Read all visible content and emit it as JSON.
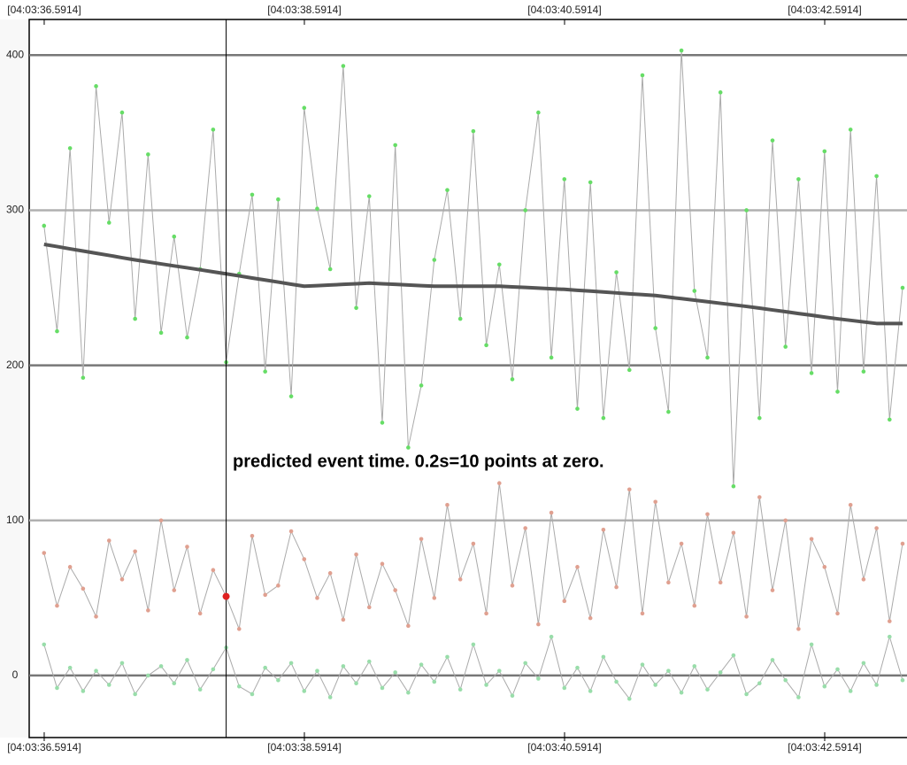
{
  "chart_data": {
    "type": "line",
    "xlim": [
      36.476,
      43.224
    ],
    "ylim": [
      -40,
      423
    ],
    "xticks": [
      {
        "value": 36.5914,
        "label": "[04:03:36.5914]"
      },
      {
        "value": 38.5914,
        "label": "[04:03:38.5914]"
      },
      {
        "value": 40.5914,
        "label": "[04:03:40.5914]"
      },
      {
        "value": 42.5914,
        "label": "[04:03:42.5914]"
      }
    ],
    "yticks": [
      0,
      100,
      200,
      300,
      400
    ],
    "grid": true,
    "annotation": "predicted event time. 0.2s=10 points at zero.",
    "cursor": {
      "x": 37.99,
      "value": 51,
      "color": "#e02020"
    },
    "x": [
      36.59,
      36.69,
      36.79,
      36.89,
      36.99,
      37.09,
      37.19,
      37.29,
      37.39,
      37.49,
      37.59,
      37.69,
      37.79,
      37.89,
      37.99,
      38.09,
      38.19,
      38.29,
      38.39,
      38.49,
      38.59,
      38.69,
      38.79,
      38.89,
      38.99,
      39.09,
      39.19,
      39.29,
      39.39,
      39.49,
      39.59,
      39.69,
      39.79,
      39.89,
      39.99,
      40.09,
      40.19,
      40.29,
      40.39,
      40.49,
      40.59,
      40.69,
      40.79,
      40.89,
      40.99,
      41.09,
      41.19,
      41.29,
      41.39,
      41.49,
      41.59,
      41.69,
      41.79,
      41.89,
      41.99,
      42.09,
      42.19,
      42.29,
      42.39,
      42.49,
      42.59,
      42.69,
      42.79,
      42.89,
      42.99,
      43.09,
      43.19
    ],
    "series": [
      {
        "color": "#66dd66",
        "markers": true,
        "values": [
          290,
          222,
          340,
          192,
          380,
          292,
          363,
          230,
          336,
          221,
          283,
          218,
          262,
          352,
          202,
          259,
          310,
          196,
          307,
          180,
          366,
          301,
          262,
          393,
          237,
          309,
          163,
          342,
          147,
          187,
          268,
          313,
          230,
          351,
          213,
          265,
          191,
          300,
          363,
          205,
          320,
          172,
          318,
          166,
          260,
          197,
          387,
          224,
          170,
          403,
          248,
          205,
          376,
          122,
          300,
          166,
          345,
          212,
          320,
          195,
          338,
          183,
          352,
          196,
          322,
          165,
          250
        ]
      },
      {
        "color": "#e0a090",
        "markers": true,
        "values": [
          79,
          45,
          70,
          56,
          38,
          87,
          62,
          80,
          42,
          100,
          55,
          83,
          40,
          68,
          51,
          30,
          90,
          52,
          58,
          93,
          75,
          50,
          66,
          36,
          78,
          44,
          72,
          55,
          32,
          88,
          50,
          110,
          62,
          85,
          40,
          124,
          58,
          95,
          33,
          105,
          48,
          70,
          37,
          94,
          57,
          120,
          40,
          112,
          60,
          85,
          45,
          104,
          60,
          92,
          38,
          115,
          55,
          100,
          30,
          88,
          70,
          40,
          110,
          62,
          95,
          35,
          85
        ]
      },
      {
        "color": "#99ddaa",
        "markers": true,
        "values": [
          20,
          -8,
          5,
          -10,
          3,
          -6,
          8,
          -12,
          0,
          6,
          -5,
          10,
          -9,
          4,
          18,
          -7,
          -12,
          5,
          -3,
          8,
          -10,
          3,
          -14,
          6,
          -5,
          9,
          -8,
          2,
          -11,
          7,
          -4,
          12,
          -9,
          20,
          -6,
          3,
          -13,
          8,
          -2,
          25,
          -8,
          5,
          -10,
          12,
          -4,
          -15,
          7,
          -6,
          3,
          -11,
          6,
          -9,
          2,
          13,
          -12,
          -5,
          10,
          -3,
          -14,
          20,
          -7,
          4,
          -10,
          8,
          -6,
          25,
          -3
        ]
      },
      {
        "color": "#555555",
        "markers": false,
        "values": [
          278,
          276.6,
          275.1,
          273.7,
          272.3,
          270.9,
          269.4,
          268,
          266.7,
          265.4,
          264.1,
          262.9,
          261.6,
          260.3,
          259,
          257.7,
          256.3,
          255,
          253.7,
          252.3,
          251,
          251.4,
          251.8,
          252.2,
          252.6,
          253,
          252.6,
          252.2,
          251.8,
          251.4,
          251,
          251,
          251,
          251,
          251,
          251,
          250.6,
          250.2,
          249.8,
          249.4,
          249,
          248.4,
          247.9,
          247.3,
          246.7,
          246.1,
          245.6,
          245,
          244,
          243,
          242,
          241,
          240,
          239,
          238,
          236.9,
          235.7,
          234.6,
          233.4,
          232.3,
          231.1,
          230,
          229,
          228,
          227,
          227,
          227
        ]
      }
    ]
  }
}
